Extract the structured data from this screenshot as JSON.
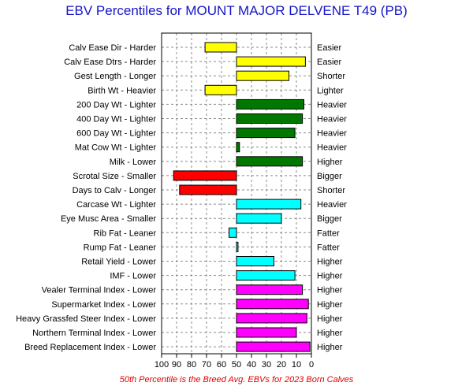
{
  "title": "EBV Percentiles for MOUNT MAJOR DELVENE T49 (PB)",
  "footnote": "50th Percentile is the Breed Avg. EBVs for 2023 Born Calves",
  "colors": {
    "yellow": "#ffff00",
    "green": "#007800",
    "red": "#ff0000",
    "cyan": "#00ffff",
    "magenta": "#ff00ff"
  },
  "chart_data": {
    "type": "bar",
    "orientation": "horizontal",
    "x_axis": {
      "range": [
        100,
        0
      ],
      "reversed": true,
      "ticks": [
        100,
        90,
        80,
        70,
        60,
        50,
        40,
        30,
        20,
        10,
        0
      ]
    },
    "baseline": 50,
    "grid": true,
    "rows": [
      {
        "left_label": "Calv Ease Dir - Harder",
        "right_label": "Easier",
        "value": 71,
        "color": "yellow"
      },
      {
        "left_label": "Calv Ease Dtrs - Harder",
        "right_label": "Easier",
        "value": 4,
        "color": "yellow"
      },
      {
        "left_label": "Gest Length - Longer",
        "right_label": "Shorter",
        "value": 15,
        "color": "yellow"
      },
      {
        "left_label": "Birth Wt - Heavier",
        "right_label": "Lighter",
        "value": 71,
        "color": "yellow"
      },
      {
        "left_label": "200 Day Wt - Lighter",
        "right_label": "Heavier",
        "value": 5,
        "color": "green"
      },
      {
        "left_label": "400 Day Wt - Lighter",
        "right_label": "Heavier",
        "value": 6,
        "color": "green"
      },
      {
        "left_label": "600 Day Wt - Lighter",
        "right_label": "Heavier",
        "value": 11,
        "color": "green"
      },
      {
        "left_label": "Mat Cow Wt - Lighter",
        "right_label": "Heavier",
        "value": 48,
        "color": "green"
      },
      {
        "left_label": "Milk - Lower",
        "right_label": "Higher",
        "value": 6,
        "color": "green"
      },
      {
        "left_label": "Scrotal Size - Smaller",
        "right_label": "Bigger",
        "value": 92,
        "color": "red"
      },
      {
        "left_label": "Days to Calv - Longer",
        "right_label": "Shorter",
        "value": 88,
        "color": "red"
      },
      {
        "left_label": "Carcase Wt - Lighter",
        "right_label": "Heavier",
        "value": 7,
        "color": "cyan"
      },
      {
        "left_label": "Eye Musc Area - Smaller",
        "right_label": "Bigger",
        "value": 20,
        "color": "cyan"
      },
      {
        "left_label": "Rib Fat - Leaner",
        "right_label": "Fatter",
        "value": 55,
        "color": "cyan"
      },
      {
        "left_label": "Rump Fat - Leaner",
        "right_label": "Fatter",
        "value": 49,
        "color": "cyan"
      },
      {
        "left_label": "Retail Yield - Lower",
        "right_label": "Higher",
        "value": 25,
        "color": "cyan"
      },
      {
        "left_label": "IMF - Lower",
        "right_label": "Higher",
        "value": 11,
        "color": "cyan"
      },
      {
        "left_label": "Vealer Terminal Index - Lower",
        "right_label": "Higher",
        "value": 6,
        "color": "magenta"
      },
      {
        "left_label": "Supermarket Index - Lower",
        "right_label": "Higher",
        "value": 2,
        "color": "magenta"
      },
      {
        "left_label": "Heavy Grassfed Steer Index - Lower",
        "right_label": "Higher",
        "value": 3,
        "color": "magenta"
      },
      {
        "left_label": "Northern Terminal Index - Lower",
        "right_label": "Higher",
        "value": 10,
        "color": "magenta"
      },
      {
        "left_label": "Breed Replacement Index - Lower",
        "right_label": "Higher",
        "value": 1,
        "color": "magenta"
      }
    ]
  }
}
